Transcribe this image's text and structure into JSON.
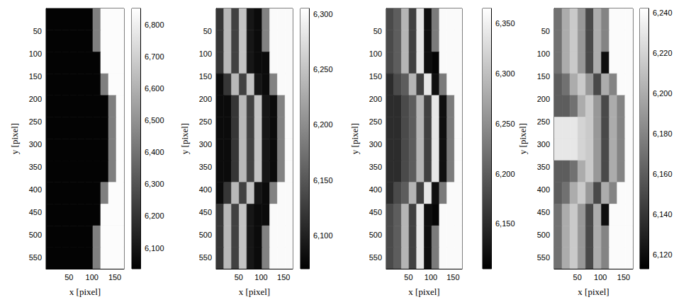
{
  "chart_data": [
    {
      "type": "heatmap",
      "x_label": "x [pixel]",
      "y_label": "y [pixel]",
      "xlim": [
        0,
        170
      ],
      "ylim": [
        0,
        575
      ],
      "xticks": [
        50,
        100,
        150
      ],
      "yticks": [
        50,
        100,
        150,
        200,
        250,
        300,
        350,
        400,
        450,
        500,
        550
      ],
      "x_edges": [
        0,
        17,
        34,
        51,
        68,
        85,
        102,
        119,
        136,
        153,
        170
      ],
      "y_edges": [
        0,
        48,
        96,
        144,
        192,
        240,
        288,
        336,
        384,
        432,
        480,
        528,
        575
      ],
      "cells": [
        [
          6045,
          6045,
          6045,
          6045,
          6045,
          6045,
          6440,
          6840,
          6840,
          6840
        ],
        [
          6045,
          6045,
          6045,
          6045,
          6045,
          6045,
          6440,
          6840,
          6840,
          6840
        ],
        [
          6045,
          6045,
          6045,
          6045,
          6045,
          6045,
          6045,
          6840,
          6840,
          6840
        ],
        [
          6045,
          6045,
          6045,
          6045,
          6045,
          6045,
          6045,
          6440,
          6840,
          6840
        ],
        [
          6045,
          6045,
          6045,
          6045,
          6045,
          6045,
          6045,
          6045,
          6440,
          6840
        ],
        [
          6045,
          6045,
          6045,
          6045,
          6045,
          6045,
          6045,
          6045,
          6440,
          6840
        ],
        [
          6045,
          6045,
          6045,
          6045,
          6045,
          6045,
          6045,
          6045,
          6440,
          6840
        ],
        [
          6045,
          6045,
          6045,
          6045,
          6045,
          6045,
          6045,
          6045,
          6440,
          6840
        ],
        [
          6045,
          6045,
          6045,
          6045,
          6045,
          6045,
          6045,
          6440,
          6840,
          6840
        ],
        [
          6045,
          6045,
          6045,
          6045,
          6045,
          6045,
          6045,
          6840,
          6840,
          6840
        ],
        [
          6045,
          6045,
          6045,
          6045,
          6045,
          6045,
          6440,
          6840,
          6840,
          6840
        ],
        [
          6045,
          6045,
          6045,
          6045,
          6045,
          6045,
          6440,
          6840,
          6840,
          6840
        ]
      ],
      "colorbar_range": [
        6035,
        6850
      ],
      "colorbar_ticks": [
        6100,
        6200,
        6300,
        6400,
        6500,
        6600,
        6700,
        6800
      ],
      "color": [
        "#000000",
        "#ffffff"
      ]
    },
    {
      "type": "heatmap",
      "x_label": "x [pixel]",
      "y_label": "y [pixel]",
      "xlim": [
        0,
        170
      ],
      "ylim": [
        0,
        575
      ],
      "xticks": [
        50,
        100,
        150
      ],
      "yticks": [
        50,
        100,
        150,
        200,
        250,
        300,
        350,
        400,
        450,
        500,
        550
      ],
      "x_edges": [
        0,
        17,
        34,
        51,
        68,
        85,
        102,
        119,
        136,
        153,
        170
      ],
      "y_edges": [
        0,
        48,
        96,
        144,
        192,
        240,
        288,
        336,
        384,
        432,
        480,
        528,
        575
      ],
      "cells": [
        [
          6120,
          6240,
          6130,
          6250,
          6090,
          6080,
          6190,
          6300,
          6300,
          6300
        ],
        [
          6120,
          6240,
          6130,
          6250,
          6090,
          6080,
          6190,
          6300,
          6300,
          6300
        ],
        [
          6120,
          6240,
          6130,
          6250,
          6090,
          6080,
          6080,
          6300,
          6300,
          6300
        ],
        [
          6080,
          6120,
          6240,
          6130,
          6250,
          6090,
          6080,
          6190,
          6300,
          6300
        ],
        [
          6080,
          6080,
          6120,
          6240,
          6130,
          6250,
          6090,
          6080,
          6190,
          6300
        ],
        [
          6080,
          6080,
          6120,
          6240,
          6130,
          6250,
          6090,
          6080,
          6190,
          6300
        ],
        [
          6080,
          6080,
          6120,
          6240,
          6130,
          6250,
          6090,
          6080,
          6190,
          6300
        ],
        [
          6080,
          6080,
          6120,
          6240,
          6130,
          6250,
          6090,
          6080,
          6190,
          6300
        ],
        [
          6080,
          6120,
          6240,
          6130,
          6250,
          6090,
          6080,
          6190,
          6300,
          6300
        ],
        [
          6120,
          6240,
          6130,
          6250,
          6090,
          6080,
          6080,
          6300,
          6300,
          6300
        ],
        [
          6120,
          6240,
          6130,
          6250,
          6090,
          6080,
          6190,
          6300,
          6300,
          6300
        ],
        [
          6120,
          6240,
          6130,
          6250,
          6090,
          6080,
          6190,
          6300,
          6300,
          6300
        ]
      ],
      "colorbar_range": [
        6070,
        6305
      ],
      "colorbar_ticks": [
        6100,
        6150,
        6200,
        6250,
        6300
      ],
      "color": [
        "#000000",
        "#ffffff"
      ]
    },
    {
      "type": "heatmap",
      "x_label": "x [pixel]",
      "y_label": "y [pixel]",
      "xlim": [
        0,
        170
      ],
      "ylim": [
        0,
        575
      ],
      "xticks": [
        50,
        100,
        150
      ],
      "yticks": [
        50,
        100,
        150,
        200,
        250,
        300,
        350,
        400,
        450,
        500,
        550
      ],
      "x_edges": [
        0,
        17,
        34,
        51,
        68,
        85,
        102,
        119,
        136,
        153,
        170
      ],
      "y_edges": [
        0,
        48,
        96,
        144,
        192,
        240,
        288,
        336,
        384,
        432,
        480,
        528,
        575
      ],
      "cells": [
        [
          6180,
          6200,
          6290,
          6170,
          6340,
          6120,
          6230,
          6360,
          6360,
          6360
        ],
        [
          6180,
          6200,
          6290,
          6170,
          6340,
          6120,
          6230,
          6360,
          6360,
          6360
        ],
        [
          6180,
          6200,
          6290,
          6170,
          6340,
          6120,
          6110,
          6360,
          6360,
          6360
        ],
        [
          6150,
          6180,
          6200,
          6290,
          6170,
          6340,
          6120,
          6230,
          6360,
          6360
        ],
        [
          6150,
          6150,
          6180,
          6200,
          6290,
          6170,
          6340,
          6120,
          6230,
          6360
        ],
        [
          6150,
          6150,
          6180,
          6200,
          6290,
          6170,
          6340,
          6120,
          6230,
          6360
        ],
        [
          6150,
          6150,
          6180,
          6200,
          6290,
          6170,
          6340,
          6120,
          6230,
          6360
        ],
        [
          6150,
          6150,
          6180,
          6200,
          6290,
          6170,
          6340,
          6120,
          6230,
          6360
        ],
        [
          6150,
          6180,
          6200,
          6290,
          6170,
          6340,
          6120,
          6230,
          6360,
          6360
        ],
        [
          6180,
          6200,
          6290,
          6170,
          6340,
          6120,
          6110,
          6360,
          6360,
          6360
        ],
        [
          6180,
          6200,
          6290,
          6170,
          6340,
          6120,
          6230,
          6360,
          6360,
          6360
        ],
        [
          6180,
          6200,
          6290,
          6170,
          6340,
          6120,
          6230,
          6360,
          6360,
          6360
        ]
      ],
      "colorbar_range": [
        6105,
        6365
      ],
      "colorbar_ticks": [
        6150,
        6200,
        6250,
        6300,
        6350
      ],
      "color": [
        "#000000",
        "#ffffff"
      ]
    },
    {
      "type": "heatmap",
      "x_label": "x [pixel]",
      "y_label": "y [pixel]",
      "xlim": [
        0,
        170
      ],
      "ylim": [
        0,
        575
      ],
      "xticks": [
        50,
        100,
        150
      ],
      "yticks": [
        50,
        100,
        150,
        200,
        250,
        300,
        350,
        400,
        450,
        500,
        550
      ],
      "x_edges": [
        0,
        17,
        34,
        51,
        68,
        85,
        102,
        119,
        136,
        153,
        170
      ],
      "y_edges": [
        0,
        48,
        96,
        144,
        192,
        240,
        288,
        336,
        384,
        432,
        480,
        528,
        575
      ],
      "cells": [
        [
          6170,
          6200,
          6215,
          6190,
          6150,
          6200,
          6180,
          6240,
          6240,
          6240
        ],
        [
          6170,
          6200,
          6215,
          6190,
          6150,
          6200,
          6180,
          6240,
          6240,
          6240
        ],
        [
          6170,
          6200,
          6215,
          6190,
          6150,
          6200,
          6120,
          6240,
          6240,
          6240
        ],
        [
          6160,
          6170,
          6200,
          6215,
          6190,
          6150,
          6200,
          6180,
          6240,
          6240
        ],
        [
          6160,
          6160,
          6170,
          6200,
          6215,
          6190,
          6150,
          6200,
          6180,
          6240
        ],
        [
          6230,
          6230,
          6230,
          6220,
          6215,
          6190,
          6150,
          6200,
          6180,
          6240
        ],
        [
          6230,
          6230,
          6230,
          6220,
          6215,
          6190,
          6150,
          6200,
          6180,
          6240
        ],
        [
          6160,
          6160,
          6170,
          6200,
          6215,
          6190,
          6150,
          6200,
          6180,
          6240
        ],
        [
          6160,
          6170,
          6200,
          6215,
          6190,
          6150,
          6200,
          6180,
          6240,
          6240
        ],
        [
          6170,
          6200,
          6215,
          6190,
          6150,
          6200,
          6120,
          6240,
          6240,
          6240
        ],
        [
          6170,
          6200,
          6215,
          6190,
          6150,
          6200,
          6180,
          6240,
          6240,
          6240
        ],
        [
          6170,
          6200,
          6215,
          6190,
          6150,
          6200,
          6180,
          6240,
          6240,
          6240
        ]
      ],
      "colorbar_range": [
        6113,
        6242
      ],
      "colorbar_ticks": [
        6120,
        6140,
        6160,
        6180,
        6200,
        6220,
        6240
      ],
      "color": [
        "#000000",
        "#ffffff"
      ]
    }
  ]
}
